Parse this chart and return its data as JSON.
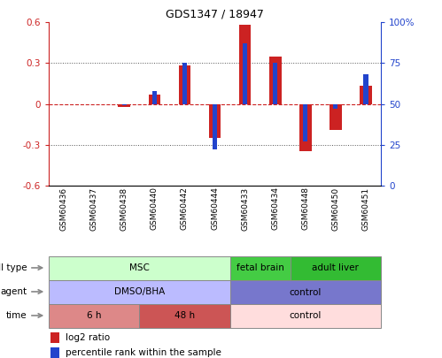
{
  "title": "GDS1347 / 18947",
  "samples": [
    "GSM60436",
    "GSM60437",
    "GSM60438",
    "GSM60440",
    "GSM60442",
    "GSM60444",
    "GSM60433",
    "GSM60434",
    "GSM60448",
    "GSM60450",
    "GSM60451"
  ],
  "log2_ratio": [
    0.0,
    0.0,
    -0.02,
    0.07,
    0.28,
    -0.25,
    0.58,
    0.35,
    -0.35,
    -0.19,
    0.13
  ],
  "percentile_rank": [
    50,
    50,
    49,
    58,
    75,
    22,
    87,
    75,
    27,
    47,
    68
  ],
  "ylim_left": [
    -0.6,
    0.6
  ],
  "ylim_right": [
    0,
    100
  ],
  "yticks_left": [
    -0.6,
    -0.3,
    0.0,
    0.3,
    0.6
  ],
  "ytick_labels_left": [
    "-0.6",
    "-0.3",
    "0",
    "0.3",
    "0.6"
  ],
  "yticks_right": [
    0,
    25,
    50,
    75,
    100
  ],
  "ytick_labels_right": [
    "0",
    "25",
    "50",
    "75",
    "100%"
  ],
  "bar_color_red": "#cc2222",
  "bar_color_blue": "#2244cc",
  "hline_color": "#cc2222",
  "dotted_line_color": "#555555",
  "cell_type_groups": [
    {
      "label": "MSC",
      "start": 0,
      "end": 5,
      "color": "#ccffcc",
      "border": "#888888"
    },
    {
      "label": "fetal brain",
      "start": 6,
      "end": 7,
      "color": "#44cc44",
      "border": "#888888"
    },
    {
      "label": "adult liver",
      "start": 8,
      "end": 10,
      "color": "#33bb33",
      "border": "#888888"
    }
  ],
  "agent_groups": [
    {
      "label": "DMSO/BHA",
      "start": 0,
      "end": 5,
      "color": "#bbbbff",
      "border": "#888888"
    },
    {
      "label": "control",
      "start": 6,
      "end": 10,
      "color": "#7777cc",
      "border": "#888888"
    }
  ],
  "time_groups": [
    {
      "label": "6 h",
      "start": 0,
      "end": 2,
      "color": "#dd8888",
      "border": "#888888"
    },
    {
      "label": "48 h",
      "start": 3,
      "end": 5,
      "color": "#cc5555",
      "border": "#888888"
    },
    {
      "label": "control",
      "start": 6,
      "end": 10,
      "color": "#ffdddd",
      "border": "#888888"
    }
  ],
  "row_labels": [
    "cell type",
    "agent",
    "time"
  ],
  "legend_items": [
    {
      "label": "log2 ratio",
      "color": "#cc2222"
    },
    {
      "label": "percentile rank within the sample",
      "color": "#2244cc"
    }
  ],
  "bg_color": "#ffffff"
}
